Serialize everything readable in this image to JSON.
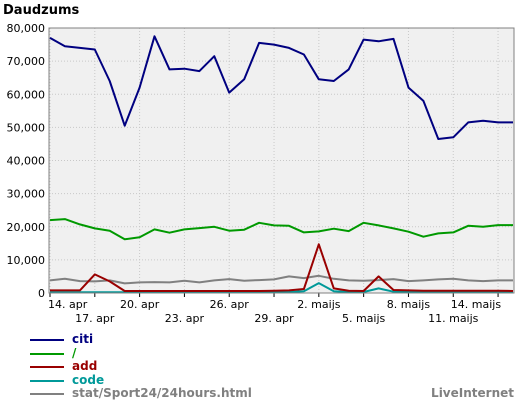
{
  "chart_data": {
    "type": "line",
    "title": "Daudzums",
    "xlabel": "",
    "ylabel": "",
    "ylim": [
      0,
      80000
    ],
    "y_ticks": [
      "0",
      "10,000",
      "20,000",
      "30,000",
      "40,000",
      "50,000",
      "60,000",
      "70,000",
      "80,000"
    ],
    "grid": true,
    "legend_position": "bottom-left",
    "x_tick_labels": [
      "14. apr",
      "17. apr",
      "20. apr",
      "23. apr",
      "26. apr",
      "29. apr",
      "2. maijs",
      "5. maijs",
      "8. maijs",
      "11. maijs",
      "14. maijs"
    ],
    "x": [
      "14.04",
      "15.04",
      "16.04",
      "17.04",
      "18.04",
      "19.04",
      "20.04",
      "21.04",
      "22.04",
      "23.04",
      "24.04",
      "25.04",
      "26.04",
      "27.04",
      "28.04",
      "29.04",
      "30.04",
      "01.05",
      "02.05",
      "03.05",
      "04.05",
      "05.05",
      "06.05",
      "07.05",
      "08.05",
      "09.05",
      "10.05",
      "11.05",
      "12.05",
      "13.05",
      "14.05",
      "15.05"
    ],
    "series": [
      {
        "name": "citi",
        "color": "#000080",
        "values": [
          77000,
          74500,
          74000,
          73500,
          64000,
          50500,
          62000,
          77500,
          67500,
          67700,
          67000,
          71500,
          60500,
          64500,
          75500,
          75000,
          74000,
          72000,
          64500,
          64000,
          67500,
          76500,
          76000,
          76700,
          62000,
          58000,
          46500,
          47000,
          51500,
          52000,
          51500,
          51500
        ]
      },
      {
        "name": "/",
        "color": "#009900",
        "values": [
          22000,
          22300,
          20700,
          19500,
          18800,
          16200,
          16800,
          19200,
          18200,
          19200,
          19600,
          20000,
          18800,
          19100,
          21200,
          20400,
          20300,
          18300,
          18600,
          19400,
          18700,
          21200,
          20400,
          19500,
          18500,
          17000,
          18000,
          18300,
          20300,
          20000,
          20500,
          20500
        ]
      },
      {
        "name": "add",
        "color": "#990000",
        "values": [
          800,
          800,
          800,
          5600,
          3500,
          600,
          600,
          600,
          600,
          600,
          600,
          600,
          600,
          600,
          600,
          700,
          800,
          1200,
          14700,
          1400,
          700,
          600,
          5000,
          900,
          800,
          700,
          700,
          700,
          700,
          700,
          700,
          600
        ]
      },
      {
        "name": "code",
        "color": "#009999",
        "values": [
          200,
          200,
          200,
          200,
          200,
          200,
          200,
          200,
          200,
          200,
          200,
          200,
          200,
          200,
          200,
          200,
          300,
          500,
          3000,
          500,
          300,
          300,
          1400,
          400,
          300,
          200,
          200,
          200,
          200,
          200,
          200,
          200
        ]
      },
      {
        "name": "stat/Sport24/24hours.html",
        "color": "#808080",
        "values": [
          3800,
          4300,
          3600,
          3500,
          3800,
          2900,
          3200,
          3300,
          3200,
          3700,
          3200,
          3800,
          4200,
          3700,
          3900,
          4100,
          5000,
          4500,
          5200,
          4300,
          3800,
          3700,
          3900,
          4200,
          3600,
          3800,
          4100,
          4300,
          3800,
          3600,
          3800,
          3800
        ]
      }
    ]
  },
  "brand": "LiveInternet"
}
